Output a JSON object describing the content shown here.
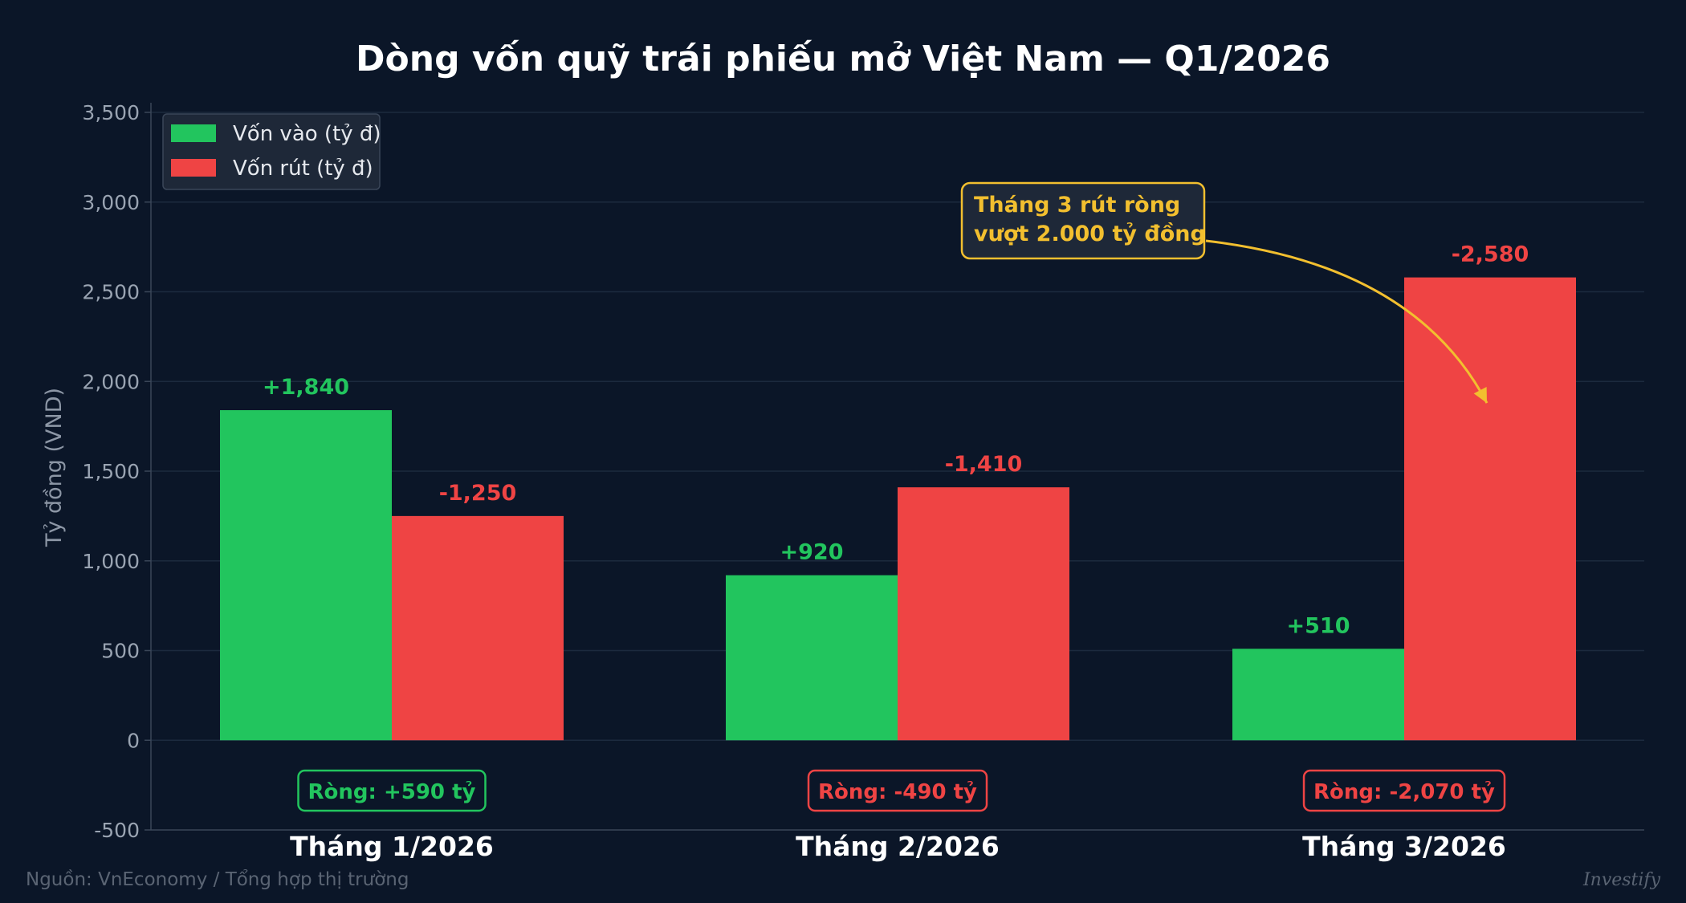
{
  "chart_data": {
    "type": "bar",
    "title": "Dòng vốn quỹ trái phiếu mở Việt Nam — Q1/2026",
    "ylabel": "Tỷ đồng (VND)",
    "ylim": [
      -500,
      3500
    ],
    "yticks": [
      -500,
      0,
      500,
      1000,
      1500,
      2000,
      2500,
      3000,
      3500
    ],
    "ytick_labels": [
      "-500",
      "0",
      "500",
      "1,000",
      "1,500",
      "2,000",
      "2,500",
      "3,000",
      "3,500"
    ],
    "categories": [
      "Tháng 1/2026",
      "Tháng 2/2026",
      "Tháng 3/2026"
    ],
    "series": [
      {
        "name": "Vốn vào (tỷ đ)",
        "values": [
          1840,
          920,
          510
        ],
        "labels": [
          "+1,840",
          "+920",
          "+510"
        ],
        "color": "#22c55e"
      },
      {
        "name": "Vốn rút (tỷ đ)",
        "values": [
          1250,
          1410,
          2580
        ],
        "labels": [
          "-1,250",
          "-1,410",
          "-2,580"
        ],
        "color": "#ef4444"
      }
    ],
    "net_labels": [
      "Ròng: +590 tỷ",
      "Ròng: -490 tỷ",
      "Ròng: -2,070 tỷ"
    ],
    "net_colors": [
      "#22c55e",
      "#ef4444",
      "#ef4444"
    ],
    "annotation": {
      "lines": [
        "Tháng 3 rút ròng",
        "vượt 2.000 tỷ đồng"
      ],
      "color": "#f2bf2f",
      "target_category": "Tháng 3/2026",
      "target_series": "Vốn rút (tỷ đ)",
      "target_value": 1880
    },
    "legend_position": "top-left",
    "grid": true
  },
  "footer": {
    "source": "Nguồn: VnEconomy / Tổng hợp thị trường",
    "brand": "Investify"
  },
  "colors": {
    "background": "#0b1628",
    "grid": "#1c2a3e",
    "axis": "#3a4658"
  }
}
